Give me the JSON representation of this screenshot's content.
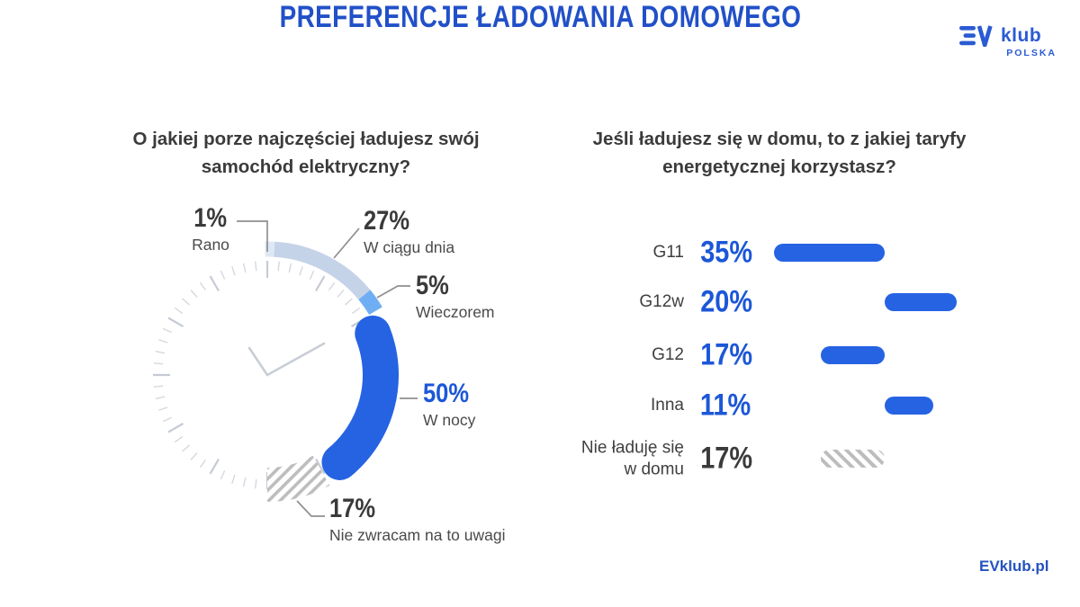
{
  "header": {
    "title": "PREFERENCJE ŁADOWANIA DOMOWEGO"
  },
  "logo": {
    "ev": "EV",
    "klub": "klub",
    "polska": "POLSKA"
  },
  "footer": {
    "link": "EVklub.pl"
  },
  "colors": {
    "title_blue": "#2150C8",
    "value_blue": "#1C57D8",
    "bar_blue": "#2563E3",
    "arc_day": "#C5D3E8",
    "arc_morning": "#DEE8F4",
    "arc_evening": "#70AEF3",
    "arc_night": "#2563E3",
    "hatch_gray": "#BDBDBD",
    "tick_gray": "#D4D8DF",
    "text_dark": "#3B3B3B"
  },
  "chart_data": [
    {
      "id": "charging-time-clock",
      "type": "donut",
      "title": "O jakiej porze najczęściej ładujesz swój samochód elektryczny?",
      "layout_hint": "clock face; 100% mapped to 180°, starting at 12 o'clock, clockwise over right half",
      "segments": [
        {
          "label": "Rano",
          "value": 1,
          "color": "#DEE8F4",
          "style": "solid"
        },
        {
          "label": "W ciągu dnia",
          "value": 27,
          "color": "#C5D3E8",
          "style": "solid"
        },
        {
          "label": "Wieczorem",
          "value": 5,
          "color": "#70AEF3",
          "style": "solid"
        },
        {
          "label": "W nocy",
          "value": 50,
          "color": "#2563E3",
          "style": "solid",
          "emphasis": true
        },
        {
          "label": "Nie zwracam na to uwagi",
          "value": 17,
          "color": "#BDBDBD",
          "style": "hatch"
        }
      ]
    },
    {
      "id": "tariff-bars",
      "type": "bar",
      "title": "Jeśli ładujesz się w domu, to z jakiej taryfy energetycznej korzystasz?",
      "layout_hint": "horizontal rounded bars alternating around a central pivot; hatched bar = no home charging",
      "categories": [
        "G11",
        "G12w",
        "G12",
        "Inna",
        "Nie ładuję się w domu"
      ],
      "values": [
        35,
        20,
        17,
        11,
        17
      ],
      "styles": [
        "solid",
        "solid",
        "solid",
        "solid",
        "hatch"
      ],
      "align": [
        "end",
        "start",
        "end",
        "start",
        "end"
      ],
      "value_colors": [
        "blue",
        "blue",
        "blue",
        "blue",
        "dark"
      ]
    }
  ]
}
